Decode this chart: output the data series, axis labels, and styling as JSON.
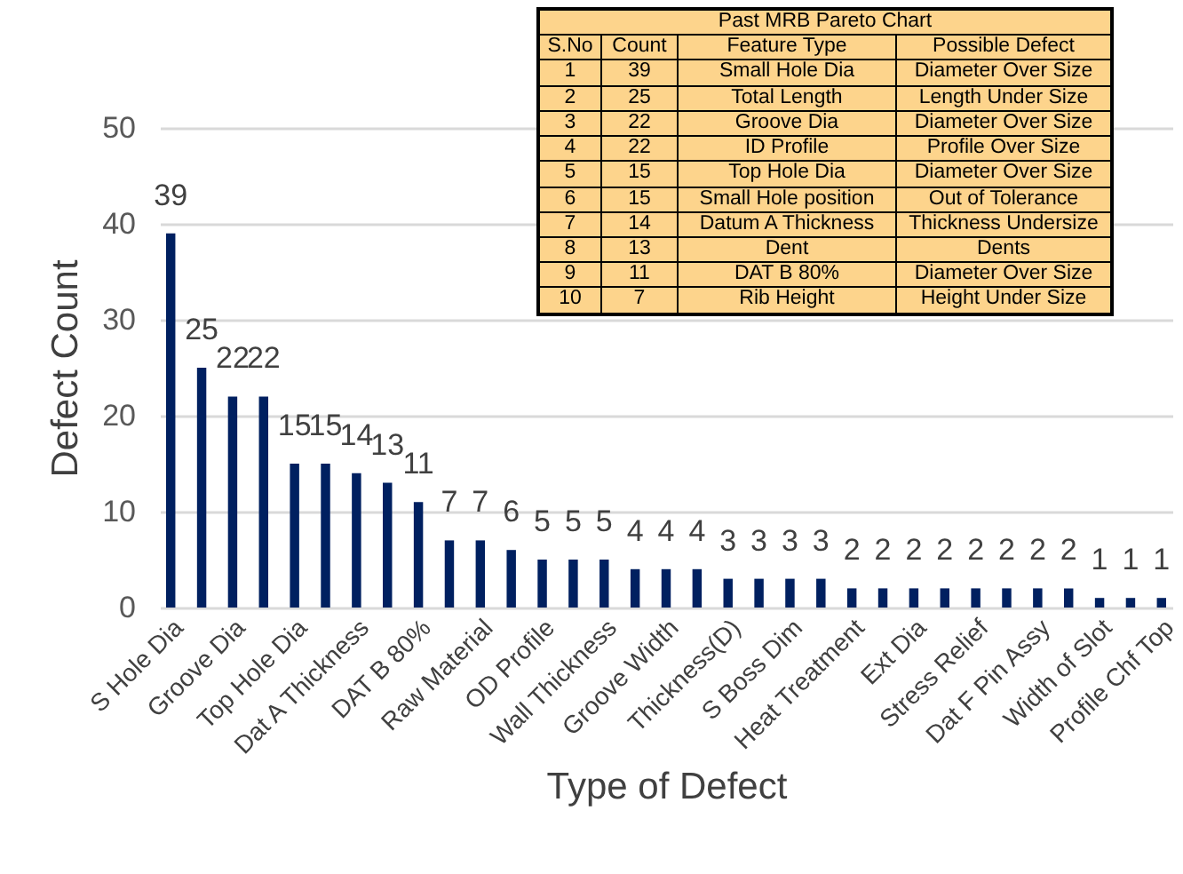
{
  "chart_data": {
    "type": "bar",
    "xlabel": "Type of Defect",
    "ylabel": "Defect Count",
    "categories": [
      "S Hole Dia",
      null,
      "Groove Dia",
      null,
      "Top Hole Dia",
      null,
      "Dat A Thickness",
      null,
      "DAT B 80%",
      null,
      "Raw Material",
      null,
      "OD Profile",
      null,
      "Wall Thickness",
      null,
      "Groove Width",
      null,
      "Thickness(D)",
      null,
      "S Boss Dim",
      null,
      "Heat Treatment",
      null,
      "Ext Dia",
      null,
      "Stress Relief",
      null,
      "Dat F Pin Assy",
      null,
      "Width of Slot",
      null,
      "Profile Chf Top"
    ],
    "values": [
      39,
      25,
      22,
      22,
      15,
      15,
      14,
      13,
      11,
      7,
      7,
      6,
      5,
      5,
      5,
      4,
      4,
      4,
      3,
      3,
      3,
      3,
      2,
      2,
      2,
      2,
      2,
      2,
      2,
      2,
      1,
      1,
      1
    ],
    "color": "#002060",
    "ylim": [
      0,
      50
    ],
    "yticks": [
      0,
      10,
      20,
      30,
      40,
      50
    ],
    "grid": "y",
    "data_labels": true,
    "annotations": [
      "Past MRB Pareto Chart",
      "S.No",
      "Count",
      "Feature Type",
      "Possible Defect",
      "1",
      "39",
      "Small Hole Dia",
      "Diameter Over Size",
      "2",
      "25",
      "Total Length",
      "Length Under Size",
      "3",
      "22",
      "Groove Dia",
      "Diameter Over Size",
      "4",
      "22",
      "ID Profile",
      "Profile Over Size",
      "5",
      "15",
      "Top Hole Dia",
      "Diameter Over Size",
      "6",
      "15",
      "Small Hole position",
      "Out of Tolerance",
      "7",
      "14",
      "Datum A Thickness",
      "Thickness Undersize",
      "8",
      "13",
      "Dent",
      "Dents",
      "9",
      "11",
      "DAT B 80%",
      "Diameter Over Size",
      "10",
      "7",
      "Rib Height",
      "Height Under Size"
    ]
  }
}
